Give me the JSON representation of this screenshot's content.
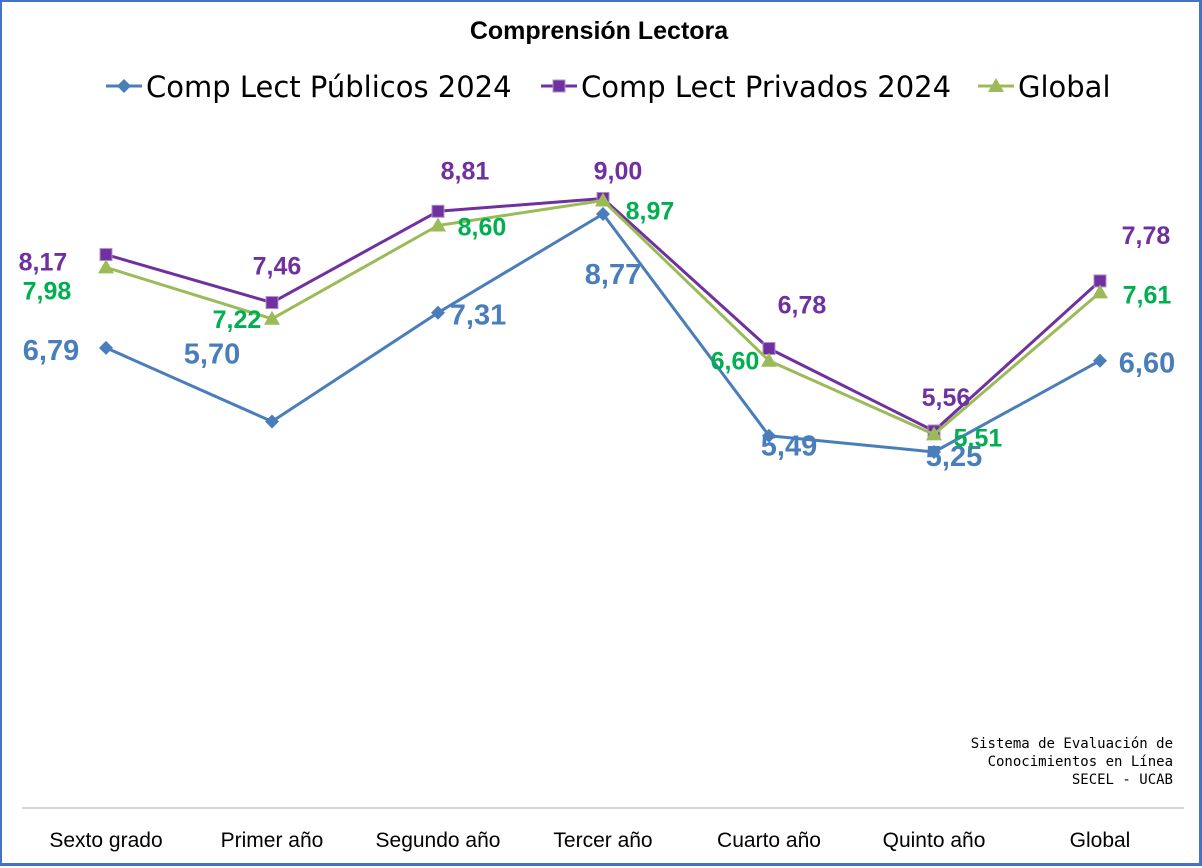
{
  "chart_data": {
    "type": "line",
    "title": "Comprensión Lectora",
    "categories": [
      "Sexto grado",
      "Primer año",
      "Segundo año",
      "Tercer año",
      "Cuarto año",
      "Quinto año",
      "Global"
    ],
    "series": [
      {
        "name": "Comp Lect Públicos 2024",
        "color": "#4a7ebb",
        "marker": "diamond",
        "values": [
          6.79,
          5.7,
          7.31,
          8.77,
          5.49,
          5.25,
          6.6
        ],
        "labels": [
          "6,79",
          "5,70",
          "7,31",
          "8,77",
          "5,49",
          "5,25",
          "6,60"
        ]
      },
      {
        "name": "Comp Lect Privados 2024",
        "color": "#7030a0",
        "marker": "square",
        "values": [
          8.17,
          7.46,
          8.81,
          9.0,
          6.78,
          5.56,
          7.78
        ],
        "labels": [
          "8,17",
          "7,46",
          "8,81",
          "9,00",
          "6,78",
          "5,56",
          "7,78"
        ]
      },
      {
        "name": "Global",
        "color": "#9bbb59",
        "label_color": "#00b050",
        "marker": "triangle",
        "values": [
          7.98,
          7.22,
          8.6,
          8.97,
          6.6,
          5.51,
          7.61
        ],
        "labels": [
          "7,98",
          "7,22",
          "8,60",
          "8,97",
          "6,60",
          "5,51",
          "7,61"
        ]
      }
    ],
    "legend_position": "top",
    "grid": false,
    "source_note": [
      "Sistema de Evaluación de",
      "Conocimientos en Línea",
      "SECEL - UCAB"
    ]
  }
}
